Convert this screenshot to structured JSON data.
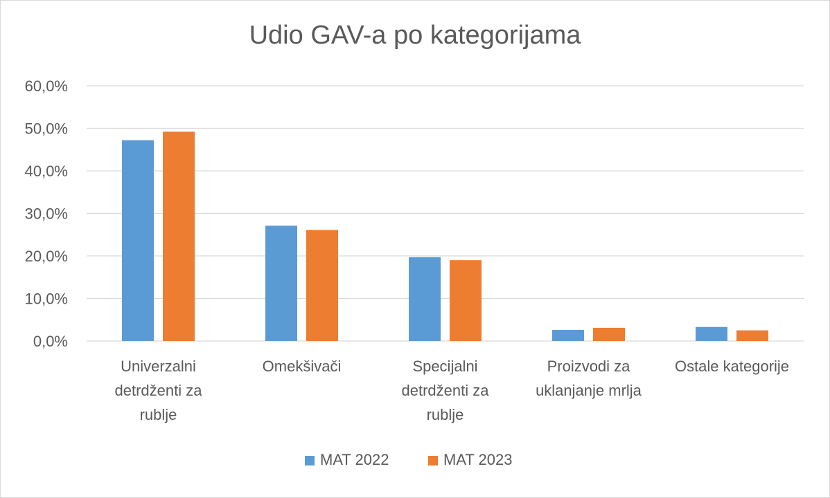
{
  "chart_data": {
    "type": "bar",
    "title": "Udio GAV-a po kategorijama",
    "categories": [
      [
        "Univerzalni",
        "detrdženti za",
        "rublje"
      ],
      [
        "Omekšivači"
      ],
      [
        "Specijalni",
        "detrdženti za",
        "rublje"
      ],
      [
        "Proizvodi za",
        "uklanjanje mrlja"
      ],
      [
        "Ostale kategorije"
      ]
    ],
    "series": [
      {
        "name": "MAT 2022",
        "color": "#5b9bd5",
        "values": [
          47.2,
          27.1,
          19.7,
          2.6,
          3.3
        ]
      },
      {
        "name": "MAT 2023",
        "color": "#ed7d31",
        "values": [
          49.2,
          26.1,
          19.0,
          3.1,
          2.5
        ]
      }
    ],
    "ylim": [
      0,
      60
    ],
    "yticks": [
      "0,0%",
      "10,0%",
      "20,0%",
      "30,0%",
      "40,0%",
      "50,0%",
      "60,0%"
    ],
    "grid": true,
    "legend_position": "bottom"
  }
}
